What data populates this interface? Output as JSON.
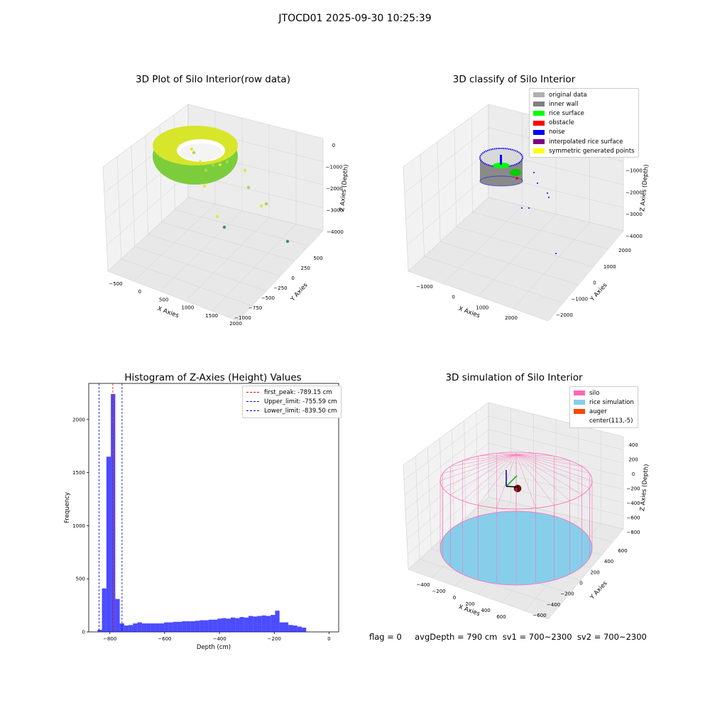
{
  "suptitle": "JTOCD01 2025-09-30 10:25:39",
  "panels": {
    "raw": {
      "title": "3D Plot of Silo Interior(row data)"
    },
    "classify": {
      "title": "3D classify of Silo Interior"
    },
    "hist": {
      "title": "Histogram of Z-Axies (Height) Values"
    },
    "sim": {
      "title": "3D simulation of Silo Interior"
    }
  },
  "bottom_text": "flag = 0     avgDepth = 790 cm  sv1 = 700~2300  sv2 = 700~2300",
  "colors": {
    "original_data": "#b0b0b0",
    "inner_wall": "#808080",
    "rice_surface": "#00ff00",
    "obstacle": "#ff0000",
    "noise": "#0000ff",
    "interpolated_rice_surface": "#800080",
    "symmetric_generated_points": "#ffff00",
    "silo": "#ff69b4",
    "rice_simulation": "#87ceeb",
    "auger": "#ff4500",
    "histogram_bar": "#0000ff",
    "first_peak": "#ff0000",
    "limits": "#0000cc"
  },
  "chart_data": [
    {
      "type": "scatter",
      "title": "3D Plot of Silo Interior(row data)",
      "xlabel": "X Axies",
      "ylabel": "Y Axies",
      "zlabel": "Z Axies (Depth)",
      "x_ticks": [
        "−500",
        "0",
        "500",
        "1000",
        "1500",
        "2000"
      ],
      "y_ticks": [
        "−1000",
        "−750",
        "−500",
        "−250",
        "0",
        "250",
        "500"
      ],
      "z_ticks": [
        "−4000",
        "−3000",
        "−2000",
        "−1000",
        "0"
      ],
      "grid": true
    },
    {
      "type": "scatter",
      "title": "3D classify of Silo Interior",
      "xlabel": "X Axies",
      "ylabel": "Y Axies",
      "zlabel": "Z Axies (Depth)",
      "x_ticks": [
        "−1000",
        "0",
        "1000",
        "2000"
      ],
      "y_ticks": [
        "−2000",
        "−1000",
        "0",
        "1000",
        "2000"
      ],
      "z_ticks": [
        "−4000",
        "−3000",
        "−2000",
        "−1000",
        "0"
      ],
      "legend": [
        "original data",
        "inner wall",
        "rice surface",
        "obstacle",
        "noise",
        "interpolated rice surface",
        "symmetric generated points"
      ],
      "legend_position": "upper right",
      "grid": true
    },
    {
      "type": "bar",
      "title": "Histogram of Z-Axies (Height) Values",
      "xlabel": "Depth (cm)",
      "ylabel": "Frequency",
      "xlim": [
        -877,
        35
      ],
      "ylim": [
        0,
        2340
      ],
      "x_ticks": [
        "−800",
        "−600",
        "−400",
        "−200",
        "0"
      ],
      "y_ticks": [
        "0",
        "500",
        "1000",
        "1500",
        "2000"
      ],
      "bin_start": -845,
      "bin_width": 16.2,
      "values": [
        20,
        410,
        1650,
        2240,
        310,
        80,
        60,
        65,
        80,
        90,
        80,
        80,
        80,
        80,
        80,
        90,
        90,
        95,
        95,
        100,
        100,
        100,
        105,
        110,
        110,
        115,
        115,
        125,
        130,
        125,
        135,
        130,
        140,
        135,
        150,
        145,
        150,
        155,
        150,
        160,
        200,
        90,
        90,
        65,
        60,
        50,
        40
      ],
      "vlines": [
        {
          "label": "first_peak: -789.15 cm",
          "x": -789.15,
          "color": "#ff0000"
        },
        {
          "label": "Upper_limit: -755.59 cm",
          "x": -755.59,
          "color": "#0000cc"
        },
        {
          "label": "Lower_limit: -839.50 cm",
          "x": -839.5,
          "color": "#0000cc"
        }
      ],
      "legend_position": "upper right"
    },
    {
      "type": "scatter",
      "title": "3D simulation of Silo Interior",
      "xlabel": "X Axies",
      "ylabel": "Y Axies",
      "zlabel": "Z Axies (Depth)",
      "x_ticks": [
        "−400",
        "−200",
        "0",
        "200",
        "400",
        "600"
      ],
      "y_ticks": [
        "−600",
        "−400",
        "−200",
        "0",
        "200",
        "400",
        "600"
      ],
      "z_ticks": [
        "−800",
        "−600",
        "−400",
        "−200",
        "0",
        "200",
        "400"
      ],
      "legend": [
        "silo",
        "rice simulation",
        "auger",
        "center(113,-5)"
      ],
      "legend_position": "upper right",
      "grid": true
    }
  ]
}
